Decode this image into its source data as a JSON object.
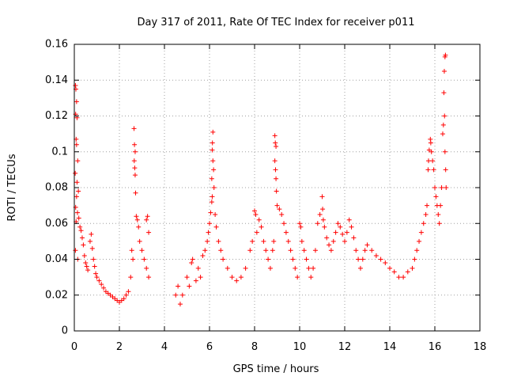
{
  "chart_data": {
    "type": "scatter",
    "title": "Day 317 of 2011, Rate Of TEC Index for receiver p011",
    "xlabel": "GPS time / hours",
    "ylabel": "ROTI / TECUs",
    "xlim": [
      0,
      18
    ],
    "ylim": [
      0,
      0.16
    ],
    "x_ticks": [
      0,
      2,
      4,
      6,
      8,
      10,
      12,
      14,
      16,
      18
    ],
    "y_ticks": [
      0,
      0.02,
      0.04,
      0.06,
      0.08,
      0.1,
      0.12,
      0.14,
      0.16
    ],
    "x_tick_labels": [
      "0",
      "2",
      "4",
      "6",
      "8",
      "10",
      "12",
      "14",
      "16",
      "18"
    ],
    "y_tick_labels": [
      "0",
      "0.02",
      "0.04",
      "0.06",
      "0.08",
      "0.1",
      "0.12",
      "0.14",
      "0.16"
    ],
    "grid": true,
    "marker": "+",
    "color": "#ff0000",
    "series": [
      {
        "name": "ROTI",
        "points": [
          [
            0.05,
            0.137
          ],
          [
            0.07,
            0.135
          ],
          [
            0.1,
            0.128
          ],
          [
            0.06,
            0.121
          ],
          [
            0.12,
            0.119
          ],
          [
            0.08,
            0.107
          ],
          [
            0.1,
            0.104
          ],
          [
            0.15,
            0.095
          ],
          [
            0.04,
            0.088
          ],
          [
            0.12,
            0.083
          ],
          [
            0.18,
            0.078
          ],
          [
            0.1,
            0.075
          ],
          [
            0.06,
            0.069
          ],
          [
            0.14,
            0.066
          ],
          [
            0.2,
            0.063
          ],
          [
            0.08,
            0.061
          ],
          [
            0.25,
            0.058
          ],
          [
            0.3,
            0.056
          ],
          [
            0.35,
            0.052
          ],
          [
            0.4,
            0.048
          ],
          [
            0.05,
            0.045
          ],
          [
            0.15,
            0.04
          ],
          [
            0.45,
            0.042
          ],
          [
            0.5,
            0.038
          ],
          [
            0.55,
            0.036
          ],
          [
            0.6,
            0.034
          ],
          [
            0.7,
            0.05
          ],
          [
            0.75,
            0.054
          ],
          [
            0.8,
            0.046
          ],
          [
            0.85,
            0.04
          ],
          [
            0.9,
            0.036
          ],
          [
            0.95,
            0.032
          ],
          [
            1.0,
            0.03
          ],
          [
            1.1,
            0.028
          ],
          [
            1.2,
            0.026
          ],
          [
            1.3,
            0.024
          ],
          [
            1.4,
            0.022
          ],
          [
            1.5,
            0.021
          ],
          [
            1.6,
            0.02
          ],
          [
            1.7,
            0.019
          ],
          [
            1.8,
            0.018
          ],
          [
            1.9,
            0.017
          ],
          [
            2.0,
            0.016
          ],
          [
            2.1,
            0.017
          ],
          [
            2.2,
            0.018
          ],
          [
            2.3,
            0.02
          ],
          [
            2.4,
            0.022
          ],
          [
            2.5,
            0.03
          ],
          [
            2.55,
            0.045
          ],
          [
            2.6,
            0.04
          ],
          [
            2.65,
            0.113
          ],
          [
            2.67,
            0.104
          ],
          [
            2.7,
            0.1
          ],
          [
            2.66,
            0.095
          ],
          [
            2.68,
            0.091
          ],
          [
            2.7,
            0.087
          ],
          [
            2.72,
            0.077
          ],
          [
            2.75,
            0.064
          ],
          [
            2.8,
            0.062
          ],
          [
            2.85,
            0.058
          ],
          [
            2.9,
            0.05
          ],
          [
            3.0,
            0.045
          ],
          [
            3.1,
            0.04
          ],
          [
            3.2,
            0.062
          ],
          [
            3.25,
            0.064
          ],
          [
            3.3,
            0.055
          ],
          [
            3.2,
            0.035
          ],
          [
            3.3,
            0.03
          ],
          [
            4.5,
            0.02
          ],
          [
            4.6,
            0.025
          ],
          [
            4.7,
            0.015
          ],
          [
            4.8,
            0.02
          ],
          [
            5.0,
            0.03
          ],
          [
            5.1,
            0.025
          ],
          [
            5.2,
            0.038
          ],
          [
            5.25,
            0.04
          ],
          [
            5.4,
            0.028
          ],
          [
            5.5,
            0.035
          ],
          [
            5.6,
            0.03
          ],
          [
            5.7,
            0.042
          ],
          [
            5.8,
            0.045
          ],
          [
            5.9,
            0.05
          ],
          [
            5.95,
            0.055
          ],
          [
            6.0,
            0.06
          ],
          [
            6.05,
            0.066
          ],
          [
            6.1,
            0.072
          ],
          [
            6.12,
            0.075
          ],
          [
            6.1,
            0.085
          ],
          [
            6.15,
            0.095
          ],
          [
            6.12,
            0.101
          ],
          [
            6.13,
            0.105
          ],
          [
            6.15,
            0.111
          ],
          [
            6.18,
            0.09
          ],
          [
            6.2,
            0.08
          ],
          [
            6.25,
            0.065
          ],
          [
            6.3,
            0.058
          ],
          [
            6.4,
            0.05
          ],
          [
            6.5,
            0.045
          ],
          [
            6.6,
            0.04
          ],
          [
            6.8,
            0.035
          ],
          [
            7.0,
            0.03
          ],
          [
            7.2,
            0.028
          ],
          [
            7.4,
            0.03
          ],
          [
            7.6,
            0.035
          ],
          [
            7.8,
            0.045
          ],
          [
            7.9,
            0.05
          ],
          [
            8.0,
            0.067
          ],
          [
            8.05,
            0.065
          ],
          [
            8.1,
            0.055
          ],
          [
            8.2,
            0.062
          ],
          [
            8.3,
            0.058
          ],
          [
            8.4,
            0.05
          ],
          [
            8.5,
            0.045
          ],
          [
            8.6,
            0.04
          ],
          [
            8.7,
            0.035
          ],
          [
            8.8,
            0.045
          ],
          [
            8.85,
            0.05
          ],
          [
            8.9,
            0.109
          ],
          [
            8.92,
            0.105
          ],
          [
            8.95,
            0.103
          ],
          [
            8.9,
            0.095
          ],
          [
            8.93,
            0.09
          ],
          [
            8.95,
            0.085
          ],
          [
            8.97,
            0.078
          ],
          [
            9.0,
            0.07
          ],
          [
            9.1,
            0.068
          ],
          [
            9.2,
            0.065
          ],
          [
            9.3,
            0.06
          ],
          [
            9.4,
            0.055
          ],
          [
            9.5,
            0.05
          ],
          [
            9.6,
            0.045
          ],
          [
            9.7,
            0.04
          ],
          [
            9.8,
            0.035
          ],
          [
            9.9,
            0.03
          ],
          [
            10.0,
            0.06
          ],
          [
            10.05,
            0.058
          ],
          [
            10.1,
            0.05
          ],
          [
            10.2,
            0.045
          ],
          [
            10.3,
            0.04
          ],
          [
            10.4,
            0.035
          ],
          [
            10.5,
            0.03
          ],
          [
            10.6,
            0.035
          ],
          [
            10.7,
            0.045
          ],
          [
            10.8,
            0.06
          ],
          [
            10.9,
            0.065
          ],
          [
            11.0,
            0.075
          ],
          [
            11.02,
            0.068
          ],
          [
            11.05,
            0.062
          ],
          [
            11.1,
            0.058
          ],
          [
            11.2,
            0.052
          ],
          [
            11.3,
            0.048
          ],
          [
            11.4,
            0.045
          ],
          [
            11.5,
            0.05
          ],
          [
            11.6,
            0.055
          ],
          [
            11.7,
            0.06
          ],
          [
            11.8,
            0.058
          ],
          [
            11.9,
            0.054
          ],
          [
            12.0,
            0.05
          ],
          [
            12.1,
            0.055
          ],
          [
            12.2,
            0.062
          ],
          [
            12.3,
            0.058
          ],
          [
            12.4,
            0.052
          ],
          [
            12.5,
            0.045
          ],
          [
            12.6,
            0.04
          ],
          [
            12.7,
            0.035
          ],
          [
            12.8,
            0.04
          ],
          [
            12.9,
            0.045
          ],
          [
            13.0,
            0.048
          ],
          [
            13.2,
            0.045
          ],
          [
            13.4,
            0.042
          ],
          [
            13.6,
            0.04
          ],
          [
            13.8,
            0.038
          ],
          [
            14.0,
            0.035
          ],
          [
            14.2,
            0.033
          ],
          [
            14.4,
            0.03
          ],
          [
            14.6,
            0.03
          ],
          [
            14.8,
            0.033
          ],
          [
            15.0,
            0.035
          ],
          [
            15.1,
            0.04
          ],
          [
            15.2,
            0.045
          ],
          [
            15.3,
            0.05
          ],
          [
            15.4,
            0.055
          ],
          [
            15.5,
            0.06
          ],
          [
            15.6,
            0.065
          ],
          [
            15.65,
            0.07
          ],
          [
            15.7,
            0.09
          ],
          [
            15.72,
            0.095
          ],
          [
            15.75,
            0.101
          ],
          [
            15.8,
            0.107
          ],
          [
            15.82,
            0.105
          ],
          [
            15.85,
            0.1
          ],
          [
            15.9,
            0.095
          ],
          [
            15.95,
            0.09
          ],
          [
            16.0,
            0.08
          ],
          [
            16.05,
            0.075
          ],
          [
            16.1,
            0.07
          ],
          [
            16.15,
            0.065
          ],
          [
            16.2,
            0.06
          ],
          [
            16.25,
            0.07
          ],
          [
            16.3,
            0.08
          ],
          [
            16.35,
            0.11
          ],
          [
            16.38,
            0.115
          ],
          [
            16.4,
            0.133
          ],
          [
            16.42,
            0.145
          ],
          [
            16.45,
            0.153
          ],
          [
            16.47,
            0.154
          ],
          [
            16.43,
            0.12
          ],
          [
            16.45,
            0.1
          ],
          [
            16.48,
            0.09
          ],
          [
            16.5,
            0.08
          ]
        ]
      }
    ]
  }
}
